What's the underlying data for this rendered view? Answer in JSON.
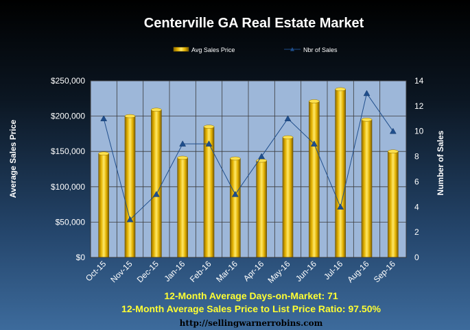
{
  "chart_data": {
    "type": "bar",
    "title": "Centerville GA Real Estate Market",
    "categories": [
      "Oct-15",
      "Nov-15",
      "Dec-15",
      "Jan-16",
      "Feb-16",
      "Mar-16",
      "Apr-16",
      "May-16",
      "Jun-16",
      "Jul-16",
      "Aug-16",
      "Sep-16"
    ],
    "series": [
      {
        "name": "Avg Sales Price",
        "type": "bar",
        "axis": "left",
        "values": [
          147000,
          200000,
          209000,
          141000,
          185000,
          140000,
          137000,
          170000,
          221000,
          238000,
          195000,
          150000
        ]
      },
      {
        "name": "Nbr of Sales",
        "type": "line",
        "axis": "right",
        "values": [
          11,
          3,
          5,
          9,
          9,
          5,
          8,
          11,
          9,
          4,
          13,
          10
        ]
      }
    ],
    "ylabel": "Average Sales Price",
    "y2label": "Number of Sales",
    "ylim": [
      0,
      250000
    ],
    "y2lim": [
      0,
      14
    ],
    "yticks": [
      "$0",
      "$50,000",
      "$100,000",
      "$150,000",
      "$200,000",
      "$250,000"
    ],
    "y2ticks": [
      "0",
      "2",
      "4",
      "6",
      "8",
      "10",
      "12",
      "14"
    ],
    "grid": true,
    "legend": "top-center"
  },
  "footer": {
    "line1": "12-Month Average Days-on-Market: 71",
    "line2": "12-Month Average Sales Price to List Price Ratio: 97.50%",
    "url": "http://sellingwarnerrobins.com"
  },
  "colors": {
    "bar": "#e8b800",
    "line": "#1f4e8c",
    "plot_bg": "#9db7d9",
    "footer_text": "#ffff33"
  }
}
